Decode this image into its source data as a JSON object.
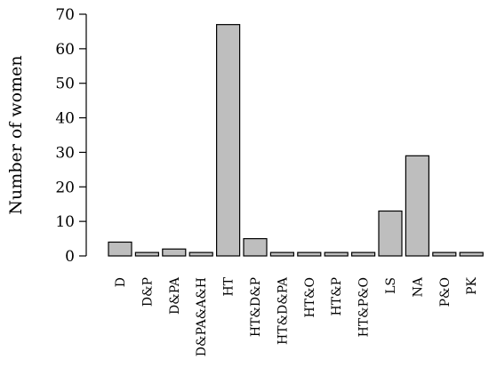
{
  "chart_data": {
    "type": "bar",
    "title": "",
    "xlabel": "",
    "ylabel": "Number of women",
    "categories": [
      "D",
      "D&P",
      "D&PA",
      "D&PA&A&H",
      "HT",
      "HT&D&P",
      "HT&D&PA",
      "HT&O",
      "HT&P",
      "HT&P&O",
      "LS",
      "NA",
      "P&O",
      "PK"
    ],
    "values": [
      4,
      1,
      2,
      1,
      67,
      5,
      1,
      1,
      1,
      1,
      13,
      29,
      1,
      1
    ],
    "ylim": [
      0,
      70
    ],
    "yticks": [
      0,
      10,
      20,
      30,
      40,
      50,
      60,
      70
    ],
    "bar_color": "#bebebe",
    "grid": false
  }
}
